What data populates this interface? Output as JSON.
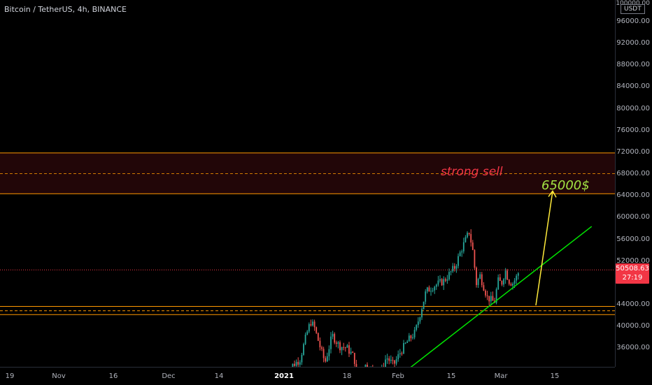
{
  "header": {
    "symbol_title": "Bitcoin / TetherUS, 4h, BINANCE"
  },
  "price_axis": {
    "currency": "USDT",
    "top_partial_label": "100000.00",
    "labels": [
      "96000.00",
      "92000.00",
      "88000.00",
      "84000.00",
      "80000.00",
      "76000.00",
      "72000.00",
      "68000.00",
      "64000.00",
      "60000.00",
      "56000.00",
      "52000.00",
      "44000.00",
      "40000.00",
      "36000.00"
    ],
    "current_price": "50508.63",
    "countdown": "27:19"
  },
  "time_axis": {
    "labels": [
      "19",
      "Nov",
      "16",
      "Dec",
      "14",
      "2021",
      "18",
      "Feb",
      "15",
      "Mar",
      "15"
    ],
    "bold_label": "2021"
  },
  "annotations": {
    "strong_sell": "strong sell",
    "target": "65000$"
  },
  "colors": {
    "background": "#000000",
    "up": "#26a69a",
    "down": "#ef5350",
    "zone_line": "#ff9800",
    "trendline": "#00e600",
    "arrow": "#ffeb3b",
    "current_price": "#f23645",
    "target_text": "#a2e343"
  },
  "chart_data": {
    "type": "candlestick",
    "ylim": [
      32000,
      100000
    ],
    "sell_zone": {
      "top": 72000,
      "bottom": 64500,
      "mid_dashed": 68200
    },
    "support_zone": {
      "top": 43800,
      "bottom": 42300,
      "mid_dashed": 43000
    },
    "current_price_line": 50508.63,
    "trendline": {
      "from": {
        "x": "Feb 3",
        "price": 31700
      },
      "to": {
        "x": "Mar 27",
        "price": 58500
      }
    },
    "projection_arrow": {
      "from_price": 44000,
      "to_price": 65000
    },
    "close_path": [
      [
        "Jan 01",
        29300
      ],
      [
        "Jan 03",
        33000
      ],
      [
        "Jan 05",
        34000
      ],
      [
        "Jan 07",
        39000
      ],
      [
        "Jan 08",
        41000
      ],
      [
        "Jan 09",
        40000
      ],
      [
        "Jan 11",
        35500
      ],
      [
        "Jan 12",
        33500
      ],
      [
        "Jan 14",
        38500
      ],
      [
        "Jan 16",
        36500
      ],
      [
        "Jan 18",
        36200
      ],
      [
        "Jan 20",
        34500
      ],
      [
        "Jan 21",
        31000
      ],
      [
        "Jan 23",
        33000
      ],
      [
        "Jan 25",
        32000
      ],
      [
        "Jan 27",
        30500
      ],
      [
        "Jan 29",
        34500
      ],
      [
        "Jan 31",
        33000
      ],
      [
        "Feb 02",
        35500
      ],
      [
        "Feb 04",
        37500
      ],
      [
        "Feb 06",
        39000
      ],
      [
        "Feb 08",
        44000
      ],
      [
        "Feb 09",
        46500
      ],
      [
        "Feb 11",
        47500
      ],
      [
        "Feb 14",
        48500
      ],
      [
        "Feb 17",
        51000
      ],
      [
        "Feb 19",
        54500
      ],
      [
        "Feb 21",
        57500
      ],
      [
        "Feb 22",
        54000
      ],
      [
        "Feb 23",
        48000
      ],
      [
        "Feb 24",
        49500
      ],
      [
        "Feb 26",
        45500
      ],
      [
        "Feb 28",
        44500
      ],
      [
        "Mar 01",
        48500
      ],
      [
        "Mar 02",
        48000
      ],
      [
        "Mar 03",
        50500
      ],
      [
        "Mar 04",
        48500
      ],
      [
        "Mar 05",
        48000
      ],
      [
        "Mar 06",
        49000
      ],
      [
        "Mar 07",
        50508
      ]
    ]
  }
}
